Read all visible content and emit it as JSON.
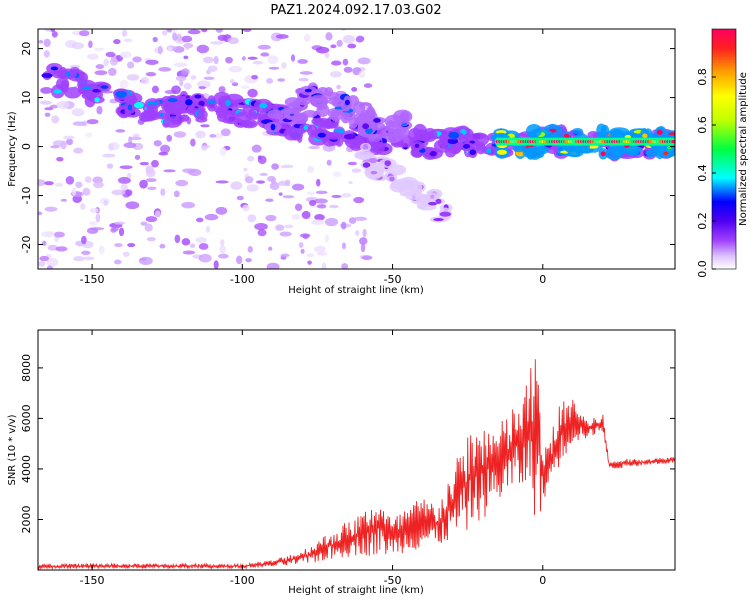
{
  "figure": {
    "title": "PAZ1.2024.092.17.03.G02"
  },
  "chart_data": [
    {
      "type": "heatmap",
      "title": "PAZ1.2024.092.17.03.G02",
      "xlabel": "Height of straight line (km)",
      "ylabel": "Frequency (Hz)",
      "xlim": [
        -168,
        44
      ],
      "ylim": [
        -25,
        24
      ],
      "x_ticks": [
        -150,
        -100,
        -50,
        0
      ],
      "y_ticks": [
        -20,
        -10,
        0,
        10,
        20
      ],
      "grid": false,
      "colorbar": {
        "label": "Normalized spectral amplitude",
        "range": [
          0,
          1
        ],
        "ticks": [
          0.0,
          0.2,
          0.4,
          0.6,
          0.8
        ],
        "colors": [
          "#ffffff",
          "#e0c8ff",
          "#a040ff",
          "#5000f0",
          "#0000ff",
          "#00ffff",
          "#00ff40",
          "#c0ff00",
          "#ffa000",
          "#ff0050"
        ]
      },
      "features": [
        {
          "name": "main ridge",
          "points": [
            [
              -165,
              14
            ],
            [
              -150,
              11
            ],
            [
              -140,
              9
            ],
            [
              -130,
              7
            ],
            [
              -115,
              8
            ],
            [
              -100,
              7
            ],
            [
              -85,
              5
            ],
            [
              -70,
              3
            ],
            [
              -55,
              2
            ],
            [
              -40,
              1
            ],
            [
              -25,
              0.5
            ],
            [
              -15,
              1
            ],
            [
              -5,
              0.5
            ],
            [
              0,
              1.5
            ],
            [
              10,
              0.5
            ],
            [
              25,
              0.5
            ],
            [
              44,
              0.5
            ]
          ],
          "amplitude": 0.3
        },
        {
          "name": "upper branch",
          "points": [
            [
              -90,
              5
            ],
            [
              -75,
              10
            ],
            [
              -65,
              8
            ],
            [
              -60,
              5
            ],
            [
              -50,
              3
            ],
            [
              -45,
              6
            ]
          ],
          "amplitude": 0.25
        },
        {
          "name": "lower branch",
          "points": [
            [
              -60,
              -2
            ],
            [
              -50,
              -6
            ],
            [
              -40,
              -10
            ],
            [
              -32,
              -14
            ]
          ],
          "amplitude": 0.12
        },
        {
          "name": "tail band",
          "points": [
            [
              -15,
              1
            ],
            [
              -5,
              1
            ],
            [
              5,
              1
            ],
            [
              15,
              1
            ],
            [
              30,
              1
            ],
            [
              44,
              1
            ]
          ],
          "amplitude": 0.85
        }
      ]
    },
    {
      "type": "line",
      "xlabel": "Height of straight line (km)",
      "ylabel": "SNR (10 * v/v)",
      "xlim": [
        -168,
        44
      ],
      "ylim": [
        0,
        9500
      ],
      "x_ticks": [
        -150,
        -100,
        -50,
        0
      ],
      "y_ticks": [
        2000,
        4000,
        6000,
        8000
      ],
      "grid": false,
      "series": [
        {
          "color": "#ee2222",
          "envelope": {
            "x": [
              -168,
              -140,
              -120,
              -100,
              -90,
              -80,
              -70,
              -60,
              -55,
              -50,
              -45,
              -40,
              -35,
              -30,
              -25,
              -20,
              -15,
              -10,
              -5,
              -2,
              0,
              5,
              10,
              15,
              20,
              22,
              25,
              30,
              40,
              44
            ],
            "low": [
              50,
              60,
              60,
              70,
              120,
              200,
              400,
              600,
              500,
              600,
              700,
              800,
              900,
              1200,
              1500,
              2000,
              2600,
              3000,
              3200,
              1800,
              2500,
              4000,
              5000,
              5200,
              5500,
              4000,
              4000,
              4100,
              4200,
              4250
            ],
            "high": [
              250,
              250,
              250,
              230,
              400,
              800,
              1600,
              2300,
              3000,
              2000,
              2600,
              2900,
              2700,
              4000,
              5500,
              6000,
              5700,
              6500,
              7500,
              9500,
              4500,
              6500,
              7000,
              5900,
              6200,
              4300,
              4400,
              4400,
              4450,
              4500
            ]
          }
        }
      ]
    }
  ]
}
